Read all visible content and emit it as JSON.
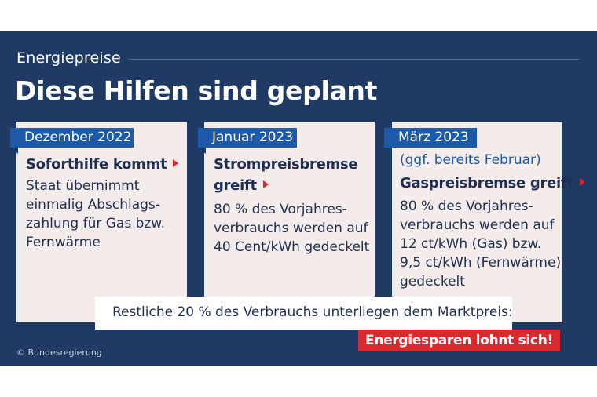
{
  "header": {
    "kicker": "Energiepreise",
    "headline": "Diese Hilfen sind geplant"
  },
  "cards": [
    {
      "date": "Dezember 2022",
      "title": "Soforthilfe kommt",
      "body": "Staat übernimmt\neinmalig Abschlags-\nzahlung für Gas bzw.\nFernwärme"
    },
    {
      "date": "Januar 2023",
      "title_line1": "Strompreisbremse",
      "title_line2": "greift",
      "body": "80 % des Vorjahres-\nverbrauchs werden auf\n40 Cent/kWh gedeckelt"
    },
    {
      "date": "März 2023",
      "subtitle": "(ggf. bereits Februar)",
      "title": "Gaspreisbremse greift",
      "body": "80 % des Vorjahres-\nverbrauchs werden auf\n12 ct/kWh (Gas) bzw.\n9,5 ct/kWh (Fernwärme)\ngedeckelt"
    }
  ],
  "note": "Restliche 20 % des Verbrauchs unterliegen dem Marktpreis:",
  "cta": "Energiesparen lohnt sich!",
  "credit": "© Bundesregierung",
  "colors": {
    "background": "#1f3a64",
    "card": "#f4ecea",
    "tag": "#1d5aa8",
    "accent_red": "#d62a2f",
    "text_dark": "#1f2f52"
  }
}
